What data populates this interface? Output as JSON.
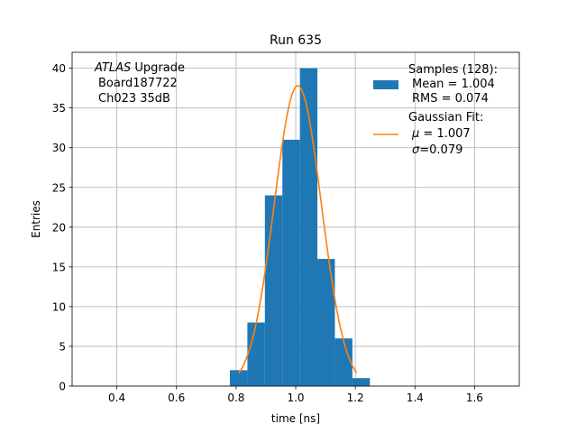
{
  "chart_data": {
    "type": "bar",
    "title": "Run 635",
    "xlabel": "time [ns]",
    "ylabel": "Entries",
    "xlim": [
      0.25,
      1.75
    ],
    "ylim": [
      0,
      42
    ],
    "xticks": [
      "0.4",
      "0.6",
      "0.8",
      "1.0",
      "1.2",
      "1.4",
      "1.6"
    ],
    "yticks": [
      "0",
      "5",
      "10",
      "15",
      "20",
      "25",
      "30",
      "35",
      "40"
    ],
    "grid": true,
    "legend_position": "top-right",
    "annotation": {
      "atlas_label": "ATLAS",
      "line1_rest": " Upgrade",
      "line2": "Board187722",
      "line3": "Ch023 35dB"
    },
    "series": [
      {
        "type": "histogram",
        "color": "#1f77b4",
        "bin_width": 0.0587,
        "bin_starts": [
          0.7792,
          0.8379,
          0.8966,
          0.9553,
          1.014,
          1.0727,
          1.1314,
          1.1901
        ],
        "counts": [
          2,
          8,
          24,
          31,
          40,
          16,
          6,
          1
        ],
        "legend": {
          "title": "Samples (128):",
          "line2": "Mean = 1.004",
          "line3": "RMS = 0.074"
        }
      },
      {
        "type": "line",
        "color": "#ff7f0e",
        "fit": {
          "amplitude": 37.8,
          "mu": 1.007,
          "sigma": 0.079,
          "x_range": [
            0.8086,
            1.2047
          ]
        },
        "legend": {
          "title": "Gaussian Fit:",
          "mu_symbol": "μ",
          "mu_text": " = 1.007",
          "sigma_symbol": "σ",
          "sigma_text": "=0.079"
        }
      }
    ]
  }
}
